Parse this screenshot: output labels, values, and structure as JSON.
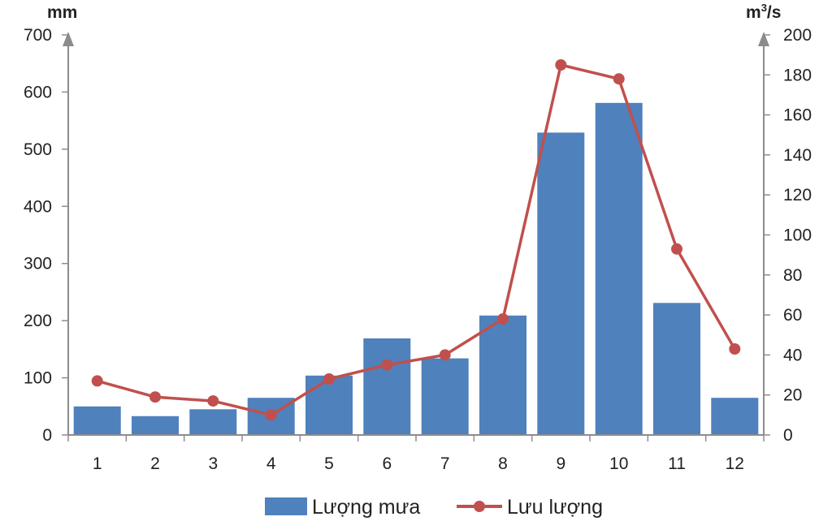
{
  "chart_data": {
    "type": "bar+line",
    "categories": [
      "1",
      "2",
      "3",
      "4",
      "5",
      "6",
      "7",
      "8",
      "9",
      "10",
      "11",
      "12"
    ],
    "series": [
      {
        "name": "Lượng mưa",
        "type": "bar",
        "axis": "left",
        "color": "#4f81bd",
        "values": [
          50,
          33,
          45,
          65,
          104,
          169,
          134,
          209,
          529,
          581,
          231,
          65
        ]
      },
      {
        "name": "Lưu lượng",
        "type": "line",
        "axis": "right",
        "color": "#c0504d",
        "values": [
          27,
          19,
          17,
          10,
          28,
          35,
          40,
          58,
          185,
          178,
          93,
          43
        ]
      }
    ],
    "y_left": {
      "unit": "mm",
      "ylim": [
        0,
        700
      ],
      "ticks": [
        "0",
        "100",
        "200",
        "300",
        "400",
        "500",
        "600",
        "700"
      ]
    },
    "y_right": {
      "unit_base": "m",
      "unit_sup": "3",
      "unit_tail": "/s",
      "ylim": [
        0,
        200
      ],
      "ticks": [
        "0",
        "20",
        "40",
        "60",
        "80",
        "100",
        "120",
        "140",
        "160",
        "180",
        "200"
      ]
    },
    "legend_position": "bottom-center",
    "grid": false
  }
}
